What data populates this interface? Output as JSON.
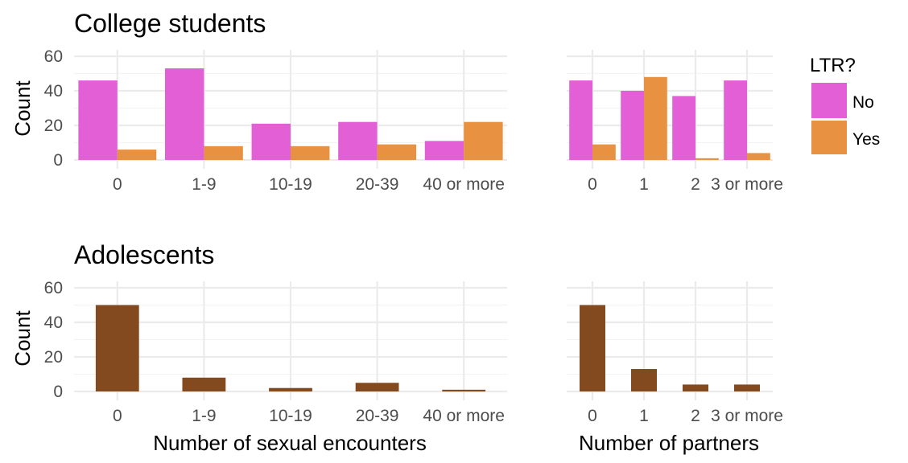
{
  "chart_data": [
    {
      "type": "bar",
      "panel": "college-encounters",
      "title": "College students",
      "ylabel": "Count",
      "xlabel": "",
      "categories": [
        "0",
        "1-9",
        "10-19",
        "20-39",
        "40 or more"
      ],
      "series": [
        {
          "name": "No",
          "values": [
            46,
            53,
            21,
            22,
            11
          ]
        },
        {
          "name": "Yes",
          "values": [
            6,
            8,
            8,
            9,
            22
          ]
        }
      ],
      "ylim": [
        0,
        60
      ],
      "yticks": [
        0,
        20,
        40,
        60
      ]
    },
    {
      "type": "bar",
      "panel": "college-partners",
      "title": "",
      "ylabel": "",
      "xlabel": "",
      "categories": [
        "0",
        "1",
        "2",
        "3 or more"
      ],
      "series": [
        {
          "name": "No",
          "values": [
            46,
            40,
            37,
            46
          ]
        },
        {
          "name": "Yes",
          "values": [
            9,
            48,
            1,
            4
          ]
        }
      ],
      "ylim": [
        0,
        60
      ]
    },
    {
      "type": "bar",
      "panel": "adolescent-encounters",
      "title": "Adolescents",
      "ylabel": "Count",
      "xlabel": "Number of sexual encounters",
      "categories": [
        "0",
        "1-9",
        "10-19",
        "20-39",
        "40 or more"
      ],
      "values": [
        50,
        8,
        2,
        5,
        1
      ],
      "ylim": [
        0,
        60
      ],
      "yticks": [
        0,
        20,
        40,
        60
      ]
    },
    {
      "type": "bar",
      "panel": "adolescent-partners",
      "title": "",
      "ylabel": "",
      "xlabel": "Number of partners",
      "categories": [
        "0",
        "1",
        "2",
        "3 or more"
      ],
      "values": [
        50,
        13,
        4,
        4
      ],
      "ylim": [
        0,
        60
      ]
    }
  ],
  "legend": {
    "title": "LTR?",
    "items": [
      {
        "label": "No",
        "color": "#e35fd6"
      },
      {
        "label": "Yes",
        "color": "#e89241"
      }
    ]
  },
  "colors": {
    "no": "#e35fd6",
    "yes": "#e89241",
    "adolescent": "#834a20"
  }
}
